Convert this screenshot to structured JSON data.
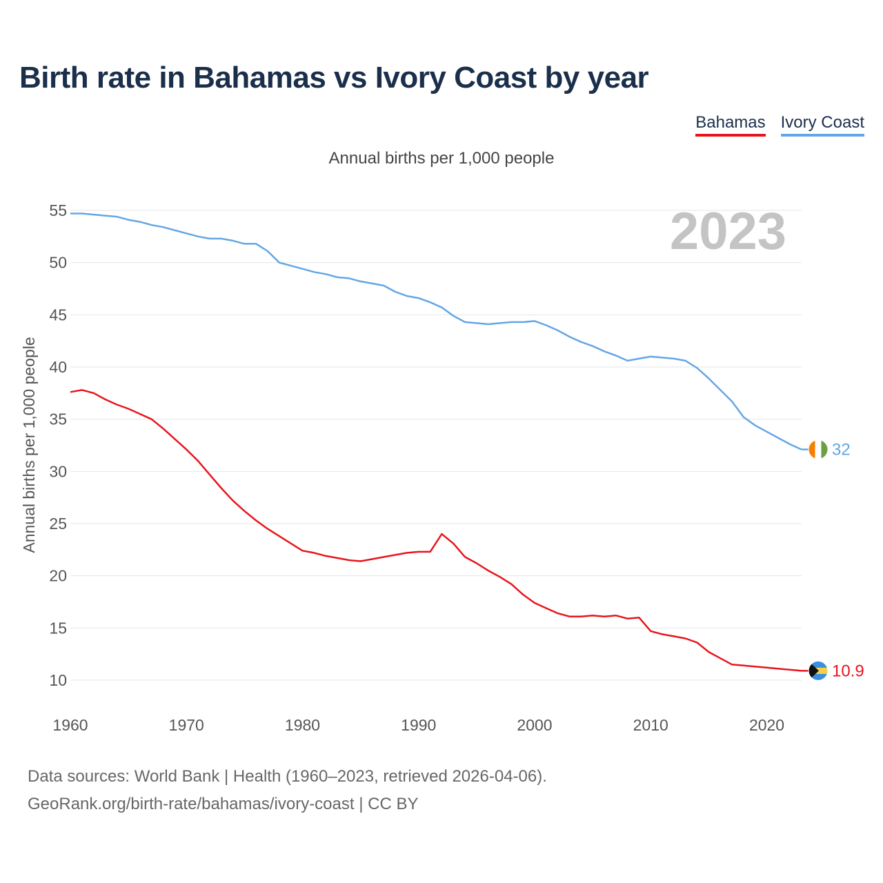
{
  "title": "Birth rate in Bahamas vs Ivory Coast by year",
  "legend": [
    {
      "label": "Bahamas",
      "color": "#e8141c"
    },
    {
      "label": "Ivory Coast",
      "color": "#63a6e6"
    }
  ],
  "subtitle": "Annual births per 1,000 people",
  "footer": {
    "line1": "Data sources: World Bank | Health (1960–2023, retrieved 2026-04-06).",
    "line2": "GeoRank.org/birth-rate/bahamas/ivory-coast | CC BY"
  },
  "chart_data": {
    "type": "line",
    "title": "Birth rate in Bahamas vs Ivory Coast by year",
    "ylabel": "Annual births per 1,000 people",
    "xlabel": "",
    "year_label": "2023",
    "xlim": [
      1960,
      2023
    ],
    "ylim": [
      7.5,
      55
    ],
    "x_ticks": [
      1960,
      1970,
      1980,
      1990,
      2000,
      2010,
      2020
    ],
    "y_ticks": [
      10,
      15,
      20,
      25,
      30,
      35,
      40,
      45,
      50,
      55
    ],
    "grid": true,
    "series": [
      {
        "name": "Bahamas",
        "color": "#e8141c",
        "end_label": "10.9",
        "flag": "bahamas",
        "x": [
          1960,
          1961,
          1962,
          1963,
          1964,
          1965,
          1966,
          1967,
          1968,
          1969,
          1970,
          1971,
          1972,
          1973,
          1974,
          1975,
          1976,
          1977,
          1978,
          1979,
          1980,
          1981,
          1982,
          1983,
          1984,
          1985,
          1986,
          1987,
          1988,
          1989,
          1990,
          1991,
          1992,
          1993,
          1994,
          1995,
          1996,
          1997,
          1998,
          1999,
          2000,
          2001,
          2002,
          2003,
          2004,
          2005,
          2006,
          2007,
          2008,
          2009,
          2010,
          2011,
          2012,
          2013,
          2014,
          2015,
          2016,
          2017,
          2018,
          2019,
          2020,
          2021,
          2022,
          2023
        ],
        "values": [
          37.6,
          37.8,
          37.5,
          36.9,
          36.4,
          36.0,
          35.5,
          35.0,
          34.1,
          33.1,
          32.1,
          31.0,
          29.7,
          28.4,
          27.2,
          26.2,
          25.3,
          24.5,
          23.8,
          23.1,
          22.4,
          22.2,
          21.9,
          21.7,
          21.5,
          21.4,
          21.6,
          21.8,
          22.0,
          22.2,
          22.3,
          22.3,
          24.0,
          23.1,
          21.8,
          21.2,
          20.5,
          19.9,
          19.2,
          18.2,
          17.4,
          16.9,
          16.4,
          16.1,
          16.1,
          16.2,
          16.1,
          16.2,
          15.9,
          16.0,
          14.7,
          14.4,
          14.2,
          14.0,
          13.6,
          12.7,
          12.1,
          11.5,
          11.4,
          11.3,
          11.2,
          11.1,
          11.0,
          10.9
        ]
      },
      {
        "name": "Ivory Coast",
        "color": "#63a6e6",
        "end_label": "32",
        "flag": "ivory-coast",
        "x": [
          1960,
          1961,
          1962,
          1963,
          1964,
          1965,
          1966,
          1967,
          1968,
          1969,
          1970,
          1971,
          1972,
          1973,
          1974,
          1975,
          1976,
          1977,
          1978,
          1979,
          1980,
          1981,
          1982,
          1983,
          1984,
          1985,
          1986,
          1987,
          1988,
          1989,
          1990,
          1991,
          1992,
          1993,
          1994,
          1995,
          1996,
          1997,
          1998,
          1999,
          2000,
          2001,
          2002,
          2003,
          2004,
          2005,
          2006,
          2007,
          2008,
          2009,
          2010,
          2011,
          2012,
          2013,
          2014,
          2015,
          2016,
          2017,
          2018,
          2019,
          2020,
          2021,
          2022,
          2023
        ],
        "values": [
          54.7,
          54.7,
          54.6,
          54.5,
          54.4,
          54.1,
          53.9,
          53.6,
          53.4,
          53.1,
          52.8,
          52.5,
          52.3,
          52.3,
          52.1,
          51.8,
          51.8,
          51.1,
          50.0,
          49.7,
          49.4,
          49.1,
          48.9,
          48.6,
          48.5,
          48.2,
          48.0,
          47.8,
          47.2,
          46.8,
          46.6,
          46.2,
          45.7,
          44.9,
          44.3,
          44.2,
          44.1,
          44.2,
          44.3,
          44.3,
          44.4,
          44.0,
          43.5,
          42.9,
          42.4,
          42.0,
          41.5,
          41.1,
          40.6,
          40.8,
          41.0,
          40.9,
          40.8,
          40.6,
          39.9,
          38.9,
          37.8,
          36.7,
          35.2,
          34.4,
          33.8,
          33.2,
          32.6,
          32.1
        ]
      }
    ]
  }
}
